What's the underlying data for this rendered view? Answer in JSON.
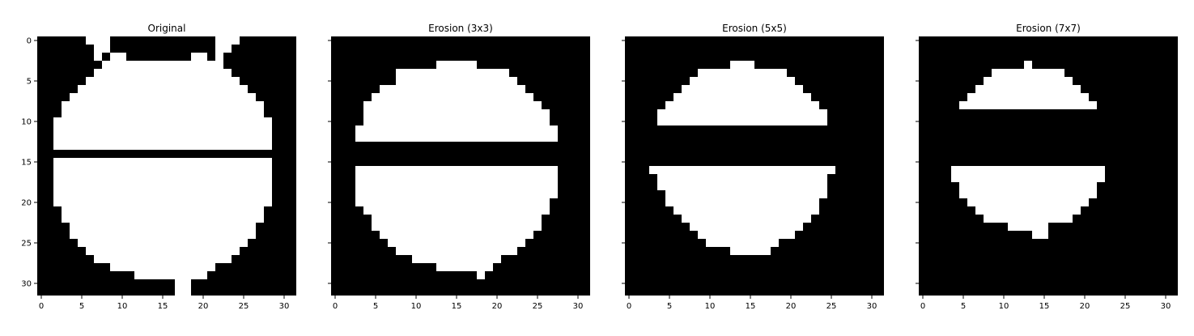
{
  "chart_data": [
    {
      "type": "heatmap",
      "title": "Original",
      "colormap": "gray",
      "image_size": [
        32,
        32
      ],
      "xlim": [
        0,
        31
      ],
      "ylim": [
        0,
        31
      ],
      "xticks": [
        "0",
        "5",
        "10",
        "15",
        "20",
        "25",
        "30"
      ],
      "yticks": [
        "0",
        "5",
        "10",
        "15",
        "20",
        "25",
        "30"
      ],
      "show_ytick_labels": true,
      "white_runs": [
        [
          0,
          [
            [
              6,
              8
            ],
            [
              22,
              24
            ]
          ]
        ],
        [
          1,
          [
            [
              7,
              8
            ],
            [
              22,
              23
            ]
          ]
        ],
        [
          2,
          [
            [
              7,
              7
            ],
            [
              9,
              10
            ],
            [
              19,
              20
            ],
            [
              22,
              22
            ]
          ]
        ],
        [
          3,
          [
            [
              8,
              22
            ]
          ]
        ],
        [
          4,
          [
            [
              7,
              23
            ]
          ]
        ],
        [
          5,
          [
            [
              6,
              24
            ]
          ]
        ],
        [
          6,
          [
            [
              5,
              25
            ]
          ]
        ],
        [
          7,
          [
            [
              4,
              26
            ]
          ]
        ],
        [
          8,
          [
            [
              3,
              27
            ]
          ]
        ],
        [
          9,
          [
            [
              3,
              27
            ]
          ]
        ],
        [
          10,
          [
            [
              2,
              28
            ]
          ]
        ],
        [
          11,
          [
            [
              2,
              28
            ]
          ]
        ],
        [
          12,
          [
            [
              2,
              28
            ]
          ]
        ],
        [
          13,
          [
            [
              2,
              28
            ]
          ]
        ],
        [
          15,
          [
            [
              2,
              28
            ]
          ]
        ],
        [
          16,
          [
            [
              2,
              28
            ]
          ]
        ],
        [
          17,
          [
            [
              2,
              28
            ]
          ]
        ],
        [
          18,
          [
            [
              2,
              28
            ]
          ]
        ],
        [
          19,
          [
            [
              2,
              28
            ]
          ]
        ],
        [
          20,
          [
            [
              2,
              28
            ]
          ]
        ],
        [
          21,
          [
            [
              3,
              27
            ]
          ]
        ],
        [
          22,
          [
            [
              3,
              27
            ]
          ]
        ],
        [
          23,
          [
            [
              4,
              26
            ]
          ]
        ],
        [
          24,
          [
            [
              4,
              26
            ]
          ]
        ],
        [
          25,
          [
            [
              5,
              25
            ]
          ]
        ],
        [
          26,
          [
            [
              6,
              24
            ]
          ]
        ],
        [
          27,
          [
            [
              7,
              23
            ]
          ]
        ],
        [
          28,
          [
            [
              9,
              21
            ]
          ]
        ],
        [
          29,
          [
            [
              12,
              20
            ]
          ]
        ],
        [
          30,
          [
            [
              17,
              18
            ]
          ]
        ],
        [
          31,
          [
            [
              17,
              18
            ]
          ]
        ]
      ]
    },
    {
      "type": "heatmap",
      "title": "Erosion (3x3)",
      "colormap": "gray",
      "image_size": [
        32,
        32
      ],
      "xlim": [
        0,
        31
      ],
      "ylim": [
        0,
        31
      ],
      "xticks": [
        "0",
        "5",
        "10",
        "15",
        "20",
        "25",
        "30"
      ],
      "yticks": [
        "0",
        "5",
        "10",
        "15",
        "20",
        "25",
        "30"
      ],
      "show_ytick_labels": false,
      "white_runs": [
        [
          3,
          [
            [
              13,
              17
            ]
          ]
        ],
        [
          4,
          [
            [
              8,
              21
            ]
          ]
        ],
        [
          5,
          [
            [
              8,
              22
            ]
          ]
        ],
        [
          6,
          [
            [
              6,
              23
            ]
          ]
        ],
        [
          7,
          [
            [
              5,
              24
            ]
          ]
        ],
        [
          8,
          [
            [
              4,
              25
            ]
          ]
        ],
        [
          9,
          [
            [
              4,
              26
            ]
          ]
        ],
        [
          10,
          [
            [
              4,
              26
            ]
          ]
        ],
        [
          11,
          [
            [
              3,
              27
            ]
          ]
        ],
        [
          12,
          [
            [
              3,
              27
            ]
          ]
        ],
        [
          16,
          [
            [
              3,
              27
            ]
          ]
        ],
        [
          17,
          [
            [
              3,
              27
            ]
          ]
        ],
        [
          18,
          [
            [
              3,
              27
            ]
          ]
        ],
        [
          19,
          [
            [
              3,
              27
            ]
          ]
        ],
        [
          20,
          [
            [
              3,
              26
            ]
          ]
        ],
        [
          21,
          [
            [
              4,
              26
            ]
          ]
        ],
        [
          22,
          [
            [
              5,
              25
            ]
          ]
        ],
        [
          23,
          [
            [
              5,
              25
            ]
          ]
        ],
        [
          24,
          [
            [
              6,
              24
            ]
          ]
        ],
        [
          25,
          [
            [
              7,
              23
            ]
          ]
        ],
        [
          26,
          [
            [
              8,
              22
            ]
          ]
        ],
        [
          27,
          [
            [
              10,
              20
            ]
          ]
        ],
        [
          28,
          [
            [
              13,
              19
            ]
          ]
        ],
        [
          29,
          [
            [
              18,
              18
            ]
          ]
        ]
      ]
    },
    {
      "type": "heatmap",
      "title": "Erosion (5x5)",
      "colormap": "gray",
      "image_size": [
        32,
        32
      ],
      "xlim": [
        0,
        31
      ],
      "ylim": [
        0,
        31
      ],
      "xticks": [
        "0",
        "5",
        "10",
        "15",
        "20",
        "25",
        "30"
      ],
      "yticks": [
        "0",
        "5",
        "10",
        "15",
        "20",
        "25",
        "30"
      ],
      "show_ytick_labels": false,
      "white_runs": [
        [
          3,
          [
            [
              13,
              15
            ]
          ]
        ],
        [
          4,
          [
            [
              9,
              19
            ]
          ]
        ],
        [
          5,
          [
            [
              8,
              20
            ]
          ]
        ],
        [
          6,
          [
            [
              7,
              21
            ]
          ]
        ],
        [
          7,
          [
            [
              6,
              22
            ]
          ]
        ],
        [
          8,
          [
            [
              5,
              23
            ]
          ]
        ],
        [
          9,
          [
            [
              4,
              24
            ]
          ]
        ],
        [
          10,
          [
            [
              4,
              24
            ]
          ]
        ],
        [
          16,
          [
            [
              3,
              25
            ]
          ]
        ],
        [
          17,
          [
            [
              4,
              24
            ]
          ]
        ],
        [
          18,
          [
            [
              4,
              24
            ]
          ]
        ],
        [
          19,
          [
            [
              5,
              24
            ]
          ]
        ],
        [
          20,
          [
            [
              5,
              23
            ]
          ]
        ],
        [
          21,
          [
            [
              6,
              23
            ]
          ]
        ],
        [
          22,
          [
            [
              7,
              22
            ]
          ]
        ],
        [
          23,
          [
            [
              8,
              21
            ]
          ]
        ],
        [
          24,
          [
            [
              9,
              20
            ]
          ]
        ],
        [
          25,
          [
            [
              10,
              18
            ]
          ]
        ],
        [
          26,
          [
            [
              13,
              17
            ]
          ]
        ]
      ]
    },
    {
      "type": "heatmap",
      "title": "Erosion (7x7)",
      "colormap": "gray",
      "image_size": [
        32,
        32
      ],
      "xlim": [
        0,
        31
      ],
      "ylim": [
        0,
        31
      ],
      "xticks": [
        "0",
        "5",
        "10",
        "15",
        "20",
        "25",
        "30"
      ],
      "yticks": [
        "0",
        "5",
        "10",
        "15",
        "20",
        "25",
        "30"
      ],
      "show_ytick_labels": false,
      "white_runs": [
        [
          3,
          [
            [
              13,
              13
            ]
          ]
        ],
        [
          4,
          [
            [
              9,
              17
            ]
          ]
        ],
        [
          5,
          [
            [
              8,
              18
            ]
          ]
        ],
        [
          6,
          [
            [
              7,
              19
            ]
          ]
        ],
        [
          7,
          [
            [
              6,
              20
            ]
          ]
        ],
        [
          8,
          [
            [
              5,
              21
            ]
          ]
        ],
        [
          16,
          [
            [
              4,
              22
            ]
          ]
        ],
        [
          17,
          [
            [
              4,
              22
            ]
          ]
        ],
        [
          18,
          [
            [
              5,
              21
            ]
          ]
        ],
        [
          19,
          [
            [
              5,
              21
            ]
          ]
        ],
        [
          20,
          [
            [
              6,
              20
            ]
          ]
        ],
        [
          21,
          [
            [
              7,
              19
            ]
          ]
        ],
        [
          22,
          [
            [
              8,
              18
            ]
          ]
        ],
        [
          23,
          [
            [
              11,
              15
            ]
          ]
        ],
        [
          24,
          [
            [
              14,
              15
            ]
          ]
        ]
      ]
    }
  ]
}
